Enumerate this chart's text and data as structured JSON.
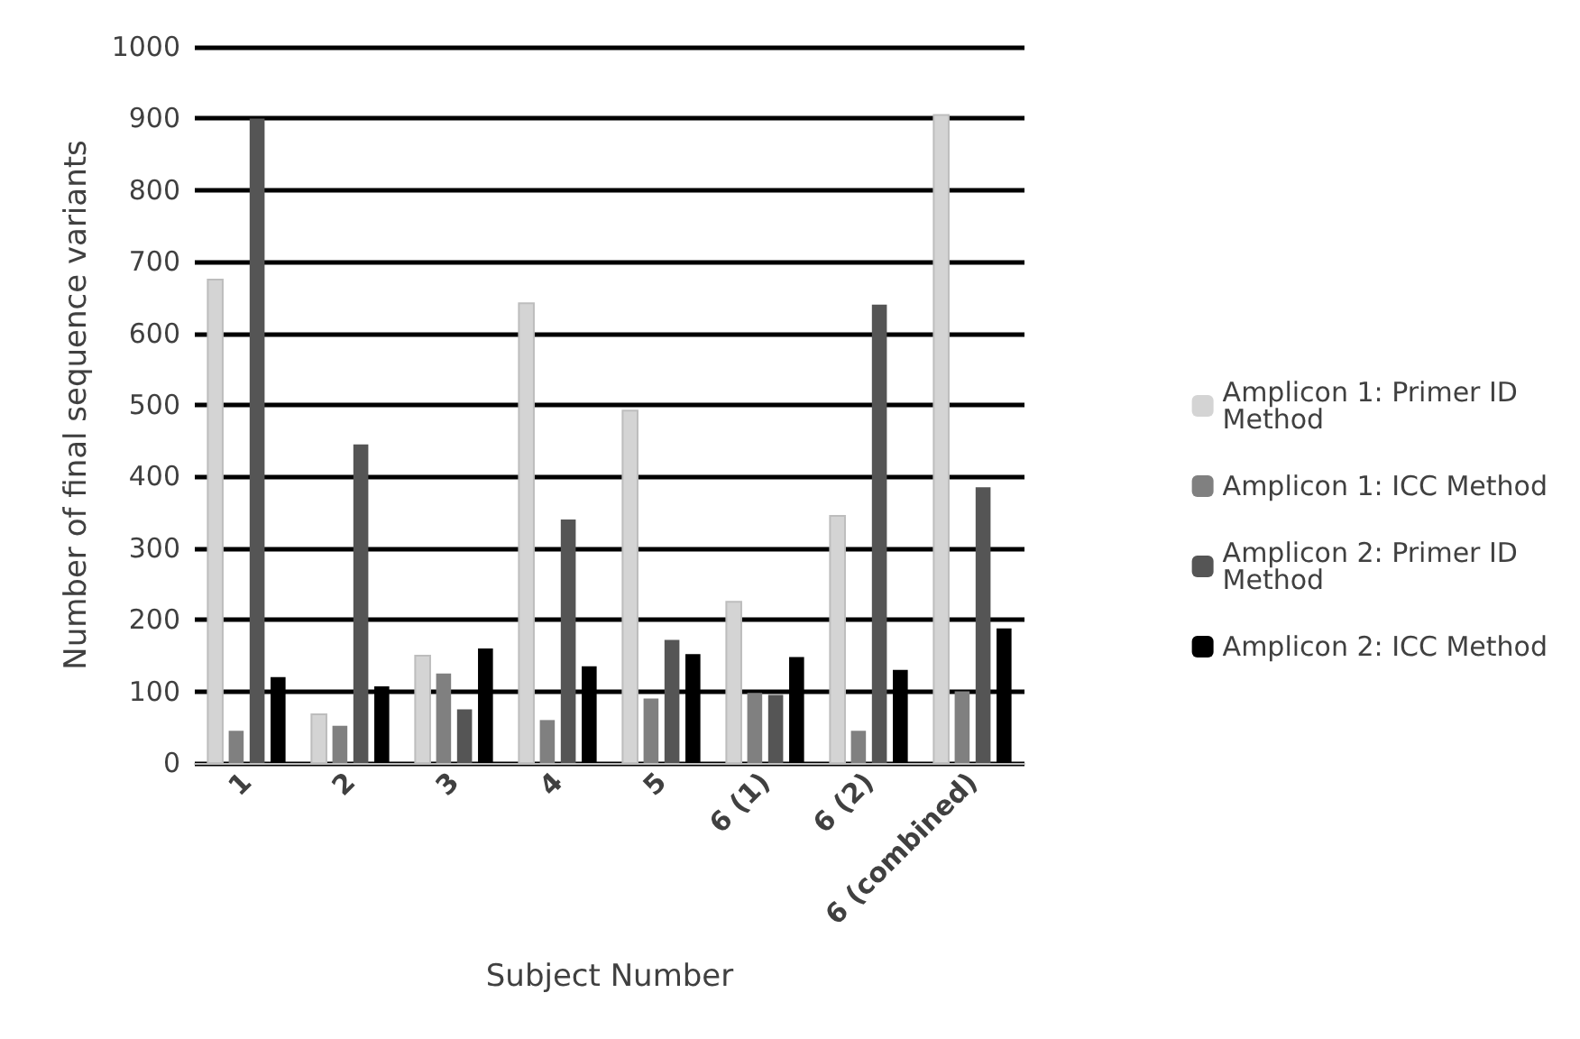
{
  "chart_data": {
    "type": "bar",
    "xlabel": "Subject Number",
    "ylabel": "Number of final sequence variants",
    "categories": [
      "1",
      "2",
      "3",
      "4",
      "5",
      "6 (1)",
      "6 (2)",
      "6 (combined)"
    ],
    "series": [
      {
        "name": "Amplicon 1: Primer ID Method",
        "color": "#d4d4d4",
        "values": [
          675,
          68,
          150,
          642,
          492,
          225,
          345,
          905
        ]
      },
      {
        "name": "Amplicon 1: ICC Method",
        "color": "#808080",
        "values": [
          45,
          52,
          125,
          60,
          90,
          98,
          45,
          100
        ]
      },
      {
        "name": "Amplicon 2: Primer ID Method",
        "color": "#555555",
        "values": [
          900,
          445,
          75,
          340,
          172,
          95,
          640,
          385
        ]
      },
      {
        "name": "Amplicon 2: ICC Method",
        "color": "#000000",
        "values": [
          120,
          107,
          160,
          135,
          152,
          148,
          130,
          188
        ]
      }
    ],
    "ylim": [
      0,
      1000
    ],
    "yticks": [
      0,
      100,
      200,
      300,
      400,
      500,
      600,
      700,
      800,
      900,
      1000
    ],
    "grid": "y",
    "legend": "right"
  }
}
